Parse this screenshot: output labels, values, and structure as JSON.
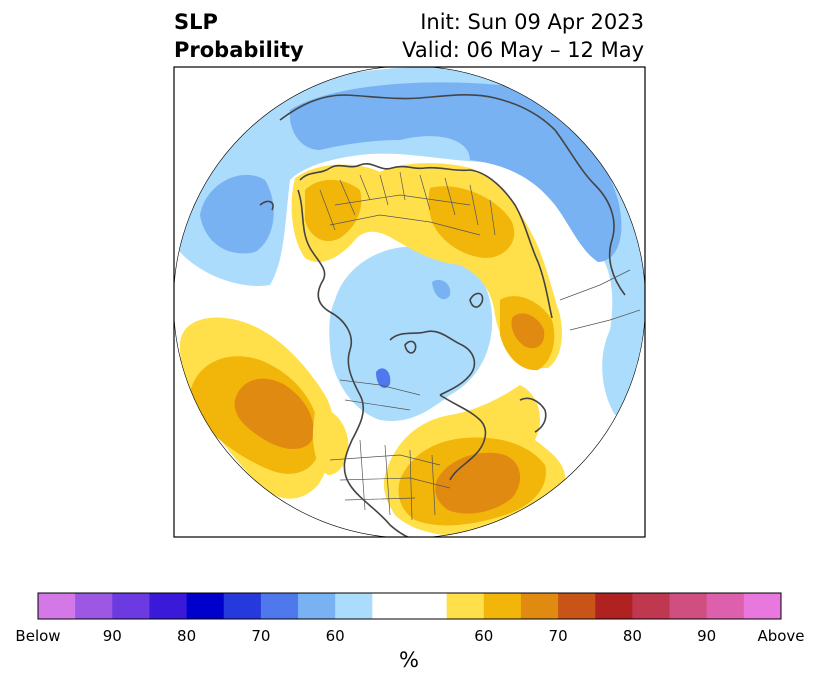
{
  "title": {
    "left_line1": "SLP",
    "left_line2": "Probability",
    "right_line1": "Init: Sun 09 Apr 2023",
    "right_line2": "Valid: 06 May – 12 May"
  },
  "colorbar": {
    "unit": "%",
    "labels": [
      "Below",
      "90",
      "80",
      "70",
      "60",
      "60",
      "70",
      "80",
      "90",
      "Above"
    ],
    "colors": [
      "#d478e8",
      "#9c58e2",
      "#6b3ae0",
      "#3a1ad8",
      "#0000cc",
      "#2639dd",
      "#4f78ec",
      "#78b2f2",
      "#acdcfb",
      "#ffffff",
      "#ffffff",
      "#ffe04a",
      "#f2b50a",
      "#e08a12",
      "#c95418",
      "#b02222",
      "#c0384f",
      "#cf4f80",
      "#dd60ad",
      "#e878de"
    ]
  },
  "colors": {
    "below_light": "#acdcfb",
    "below_medium": "#78b2f2",
    "below_strong": "#4f78ec",
    "above_light": "#ffe04a",
    "above_medium": "#f2b50a",
    "above_strong": "#e08a12",
    "coastline": "#444444"
  }
}
